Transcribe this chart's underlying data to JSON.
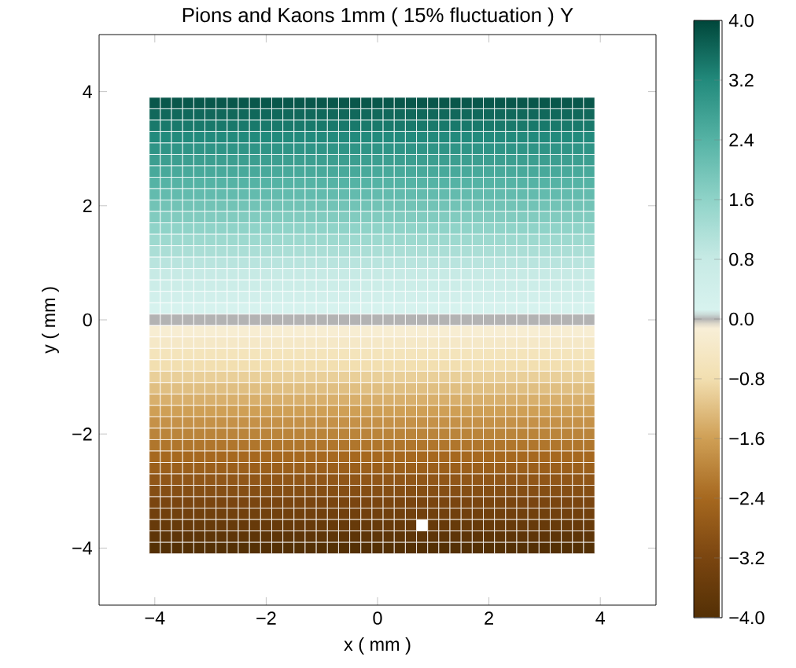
{
  "chart_data": {
    "type": "heatmap",
    "title": "Pions and Kaons 1mm ( 15% fluctuation ) Y",
    "xlabel": "x ( mm )",
    "ylabel": "y ( mm )",
    "x": [
      -4.0,
      -3.8,
      -3.6,
      -3.4,
      -3.2,
      -3.0,
      -2.8,
      -2.6,
      -2.4,
      -2.2,
      -2.0,
      -1.8,
      -1.6,
      -1.4,
      -1.2,
      -1.0,
      -0.8,
      -0.6,
      -0.4,
      -0.2,
      0.0,
      0.2,
      0.4,
      0.6,
      0.8,
      1.0,
      1.2,
      1.4,
      1.6,
      1.8,
      2.0,
      2.2,
      2.4,
      2.6,
      2.8,
      3.0,
      3.2,
      3.4,
      3.6,
      3.8
    ],
    "y": [
      3.8,
      3.6,
      3.4,
      3.2,
      3.0,
      2.8,
      2.6,
      2.4,
      2.2,
      2.0,
      1.8,
      1.6,
      1.4,
      1.2,
      1.0,
      0.8,
      0.6,
      0.4,
      0.2,
      0.0,
      -0.2,
      -0.4,
      -0.6,
      -0.8,
      -1.0,
      -1.2,
      -1.4,
      -1.6,
      -1.8,
      -2.0,
      -2.2,
      -2.4,
      -2.6,
      -2.8,
      -3.0,
      -3.2,
      -3.4,
      -3.6,
      -3.8,
      -4.0
    ],
    "cells": [
      [
        3.8,
        3.8,
        3.8,
        3.8,
        3.8,
        3.8,
        3.8,
        3.8,
        3.8,
        3.8,
        3.8,
        3.8,
        3.8,
        3.8,
        3.8,
        3.8,
        3.8,
        3.8,
        3.8,
        3.8,
        3.8,
        3.8,
        3.8,
        3.8,
        3.8,
        3.8,
        3.8,
        3.8,
        3.8,
        3.8,
        3.8,
        3.8,
        3.8,
        3.8,
        3.8,
        3.8,
        3.8,
        3.8,
        3.8,
        3.8
      ],
      [
        3.6,
        3.6,
        3.6,
        3.6,
        3.6,
        3.6,
        3.6,
        3.6,
        3.6,
        3.6,
        3.6,
        3.6,
        3.6,
        3.6,
        3.6,
        3.6,
        3.6,
        3.6,
        3.6,
        3.6,
        3.6,
        3.6,
        3.6,
        3.6,
        3.6,
        3.6,
        3.6,
        3.6,
        3.6,
        3.6,
        3.6,
        3.6,
        3.6,
        3.6,
        3.6,
        3.6,
        3.6,
        3.6,
        3.6,
        3.6
      ],
      [
        3.4,
        3.4,
        3.4,
        3.4,
        3.4,
        3.4,
        3.4,
        3.4,
        3.4,
        3.4,
        3.4,
        3.4,
        3.4,
        3.4,
        3.4,
        3.4,
        3.4,
        3.4,
        3.4,
        3.4,
        3.4,
        3.4,
        3.4,
        3.4,
        3.4,
        3.4,
        3.4,
        3.4,
        3.4,
        3.4,
        3.4,
        3.4,
        3.4,
        3.4,
        3.4,
        3.4,
        3.4,
        3.4,
        3.4,
        3.4
      ],
      [
        3.2,
        3.2,
        3.2,
        3.2,
        3.2,
        3.2,
        3.2,
        3.2,
        3.2,
        3.2,
        3.2,
        3.2,
        3.2,
        3.2,
        3.2,
        3.2,
        3.2,
        3.2,
        3.2,
        3.2,
        3.2,
        3.2,
        3.2,
        3.2,
        3.2,
        3.2,
        3.2,
        3.2,
        3.2,
        3.2,
        3.2,
        3.2,
        3.2,
        3.2,
        3.2,
        3.2,
        3.2,
        3.2,
        3.2,
        3.2
      ],
      [
        3.0,
        3.0,
        3.0,
        3.0,
        3.0,
        3.0,
        3.0,
        3.0,
        3.0,
        3.0,
        3.0,
        3.0,
        3.0,
        3.0,
        3.0,
        3.0,
        3.0,
        3.0,
        3.0,
        3.0,
        3.0,
        3.0,
        3.0,
        3.0,
        3.0,
        3.0,
        3.0,
        3.0,
        3.0,
        3.0,
        3.0,
        3.0,
        3.0,
        3.0,
        3.0,
        3.0,
        3.0,
        3.0,
        3.0,
        3.0
      ],
      [
        2.8,
        2.8,
        2.8,
        2.8,
        2.8,
        2.8,
        2.8,
        2.8,
        2.8,
        2.8,
        2.8,
        2.8,
        2.8,
        2.8,
        2.8,
        2.8,
        2.8,
        2.8,
        2.8,
        2.8,
        2.8,
        2.8,
        2.8,
        2.8,
        2.8,
        2.8,
        2.8,
        2.8,
        2.8,
        2.8,
        2.8,
        2.8,
        2.8,
        2.8,
        2.8,
        2.8,
        2.8,
        2.8,
        2.8,
        2.8
      ],
      [
        2.6,
        2.6,
        2.6,
        2.6,
        2.6,
        2.6,
        2.6,
        2.6,
        2.6,
        2.6,
        2.6,
        2.6,
        2.6,
        2.6,
        2.6,
        2.6,
        2.6,
        2.6,
        2.6,
        2.6,
        2.6,
        2.6,
        2.6,
        2.6,
        2.6,
        2.6,
        2.6,
        2.6,
        2.6,
        2.6,
        2.6,
        2.6,
        2.6,
        2.6,
        2.6,
        2.6,
        2.6,
        2.6,
        2.6,
        2.6
      ],
      [
        2.4,
        2.4,
        2.4,
        2.4,
        2.4,
        2.4,
        2.4,
        2.4,
        2.4,
        2.4,
        2.4,
        2.4,
        2.4,
        2.4,
        2.4,
        2.4,
        2.4,
        2.4,
        2.4,
        2.4,
        2.4,
        2.4,
        2.4,
        2.4,
        2.4,
        2.4,
        2.4,
        2.4,
        2.4,
        2.4,
        2.4,
        2.4,
        2.4,
        2.4,
        2.4,
        2.4,
        2.4,
        2.4,
        2.4,
        2.4
      ],
      [
        2.2,
        2.2,
        2.2,
        2.2,
        2.2,
        2.2,
        2.2,
        2.2,
        2.2,
        2.2,
        2.2,
        2.2,
        2.2,
        2.2,
        2.2,
        2.2,
        2.2,
        2.2,
        2.2,
        2.2,
        2.2,
        2.2,
        2.2,
        2.2,
        2.2,
        2.2,
        2.2,
        2.2,
        2.2,
        2.2,
        2.2,
        2.2,
        2.2,
        2.2,
        2.2,
        2.2,
        2.2,
        2.2,
        2.2,
        2.2
      ],
      [
        2.0,
        2.0,
        2.0,
        2.0,
        2.0,
        2.0,
        2.0,
        2.0,
        2.0,
        2.0,
        2.0,
        2.0,
        2.0,
        2.0,
        2.0,
        2.0,
        2.0,
        2.0,
        2.0,
        2.0,
        2.0,
        2.0,
        2.0,
        2.0,
        2.0,
        2.0,
        2.0,
        2.0,
        2.0,
        2.0,
        2.0,
        2.0,
        2.0,
        2.0,
        2.0,
        2.0,
        2.0,
        2.0,
        2.0,
        2.0
      ],
      [
        1.8,
        1.8,
        1.8,
        1.8,
        1.8,
        1.8,
        1.8,
        1.8,
        1.8,
        1.8,
        1.8,
        1.8,
        1.8,
        1.8,
        1.8,
        1.8,
        1.8,
        1.8,
        1.8,
        1.8,
        1.8,
        1.8,
        1.8,
        1.8,
        1.8,
        1.8,
        1.8,
        1.8,
        1.8,
        1.8,
        1.8,
        1.8,
        1.8,
        1.8,
        1.8,
        1.8,
        1.8,
        1.8,
        1.8,
        1.8
      ],
      [
        1.6,
        1.6,
        1.6,
        1.6,
        1.6,
        1.6,
        1.6,
        1.6,
        1.6,
        1.6,
        1.6,
        1.6,
        1.6,
        1.6,
        1.6,
        1.6,
        1.6,
        1.6,
        1.6,
        1.6,
        1.6,
        1.6,
        1.6,
        1.6,
        1.6,
        1.6,
        1.6,
        1.6,
        1.6,
        1.6,
        1.6,
        1.6,
        1.6,
        1.6,
        1.6,
        1.6,
        1.6,
        1.6,
        1.6,
        1.6
      ],
      [
        1.4,
        1.4,
        1.4,
        1.4,
        1.4,
        1.4,
        1.4,
        1.4,
        1.4,
        1.4,
        1.4,
        1.4,
        1.4,
        1.4,
        1.4,
        1.4,
        1.4,
        1.4,
        1.4,
        1.4,
        1.4,
        1.4,
        1.4,
        1.4,
        1.4,
        1.4,
        1.4,
        1.4,
        1.4,
        1.4,
        1.4,
        1.4,
        1.4,
        1.4,
        1.4,
        1.4,
        1.4,
        1.4,
        1.4,
        1.4
      ],
      [
        1.2,
        1.2,
        1.2,
        1.2,
        1.2,
        1.2,
        1.2,
        1.2,
        1.2,
        1.2,
        1.2,
        1.2,
        1.2,
        1.2,
        1.2,
        1.2,
        1.2,
        1.2,
        1.2,
        1.2,
        1.2,
        1.2,
        1.2,
        1.2,
        1.2,
        1.2,
        1.2,
        1.2,
        1.2,
        1.2,
        1.2,
        1.2,
        1.2,
        1.2,
        1.2,
        1.2,
        1.2,
        1.2,
        1.2,
        1.2
      ],
      [
        1.0,
        1.0,
        1.0,
        1.0,
        1.0,
        1.0,
        1.0,
        1.0,
        1.0,
        1.0,
        1.0,
        1.0,
        1.0,
        1.0,
        1.0,
        1.0,
        1.0,
        1.0,
        1.0,
        1.0,
        1.0,
        1.0,
        1.0,
        1.0,
        1.0,
        1.0,
        1.0,
        1.0,
        1.0,
        1.0,
        1.0,
        1.0,
        1.0,
        1.0,
        1.0,
        1.0,
        1.0,
        1.0,
        1.0,
        1.0
      ],
      [
        0.8,
        0.8,
        0.8,
        0.8,
        0.8,
        0.8,
        0.8,
        0.8,
        0.8,
        0.8,
        0.8,
        0.8,
        0.8,
        0.8,
        0.8,
        0.8,
        0.8,
        0.8,
        0.8,
        0.8,
        0.8,
        0.8,
        0.8,
        0.8,
        0.8,
        0.8,
        0.8,
        0.8,
        0.8,
        0.8,
        0.8,
        0.8,
        0.8,
        0.8,
        0.8,
        0.8,
        0.8,
        0.8,
        0.8,
        0.8
      ],
      [
        0.6,
        0.6,
        0.6,
        0.6,
        0.6,
        0.6,
        0.6,
        0.6,
        0.6,
        0.6,
        0.6,
        0.6,
        0.6,
        0.6,
        0.6,
        0.6,
        0.6,
        0.6,
        0.6,
        0.6,
        0.6,
        0.6,
        0.6,
        0.6,
        0.6,
        0.6,
        0.6,
        0.6,
        0.6,
        0.6,
        0.6,
        0.6,
        0.6,
        0.6,
        0.6,
        0.6,
        0.6,
        0.6,
        0.6,
        0.6
      ],
      [
        0.4,
        0.4,
        0.4,
        0.4,
        0.4,
        0.4,
        0.4,
        0.4,
        0.4,
        0.4,
        0.4,
        0.4,
        0.4,
        0.4,
        0.4,
        0.4,
        0.4,
        0.4,
        0.4,
        0.4,
        0.4,
        0.4,
        0.4,
        0.4,
        0.4,
        0.4,
        0.4,
        0.4,
        0.4,
        0.4,
        0.4,
        0.4,
        0.4,
        0.4,
        0.4,
        0.4,
        0.4,
        0.4,
        0.4,
        0.4
      ],
      [
        0.2,
        0.2,
        0.2,
        0.2,
        0.2,
        0.2,
        0.2,
        0.2,
        0.2,
        0.2,
        0.2,
        0.2,
        0.2,
        0.2,
        0.2,
        0.2,
        0.2,
        0.2,
        0.2,
        0.2,
        0.2,
        0.2,
        0.2,
        0.2,
        0.2,
        0.2,
        0.2,
        0.2,
        0.2,
        0.2,
        0.2,
        0.2,
        0.2,
        0.2,
        0.2,
        0.2,
        0.2,
        0.2,
        0.2,
        0.2
      ],
      [
        0.0,
        0.0,
        0.0,
        0.0,
        0.0,
        0.0,
        0.0,
        0.0,
        0.0,
        0.0,
        0.0,
        0.0,
        0.0,
        0.0,
        0.0,
        0.0,
        0.0,
        0.0,
        0.0,
        0.0,
        0.0,
        0.0,
        0.0,
        0.0,
        0.0,
        0.0,
        0.0,
        0.0,
        0.0,
        0.0,
        0.0,
        0.0,
        0.0,
        0.0,
        0.0,
        0.0,
        0.0,
        0.0,
        0.0,
        0.0
      ],
      [
        -0.2,
        -0.2,
        -0.2,
        -0.2,
        -0.2,
        -0.2,
        -0.2,
        -0.2,
        -0.2,
        -0.2,
        -0.2,
        -0.2,
        -0.2,
        -0.2,
        -0.2,
        -0.2,
        -0.2,
        -0.2,
        -0.2,
        -0.2,
        -0.2,
        -0.2,
        -0.2,
        -0.2,
        -0.2,
        -0.2,
        -0.2,
        -0.2,
        -0.2,
        -0.2,
        -0.2,
        -0.2,
        -0.2,
        -0.2,
        -0.2,
        -0.2,
        -0.2,
        -0.2,
        -0.2,
        -0.2
      ],
      [
        -0.4,
        -0.4,
        -0.4,
        -0.4,
        -0.4,
        -0.4,
        -0.4,
        -0.4,
        -0.4,
        -0.4,
        -0.4,
        -0.4,
        -0.4,
        -0.4,
        -0.4,
        -0.4,
        -0.4,
        -0.4,
        -0.4,
        -0.4,
        -0.4,
        -0.4,
        -0.4,
        -0.4,
        -0.4,
        -0.4,
        -0.4,
        -0.4,
        -0.4,
        -0.4,
        -0.4,
        -0.4,
        -0.4,
        -0.4,
        -0.4,
        -0.4,
        -0.4,
        -0.4,
        -0.4,
        -0.4
      ],
      [
        -0.6,
        -0.6,
        -0.6,
        -0.6,
        -0.6,
        -0.6,
        -0.6,
        -0.6,
        -0.6,
        -0.6,
        -0.6,
        -0.6,
        -0.6,
        -0.6,
        -0.6,
        -0.6,
        -0.6,
        -0.6,
        -0.6,
        -0.6,
        -0.6,
        -0.6,
        -0.6,
        -0.6,
        -0.6,
        -0.6,
        -0.6,
        -0.6,
        -0.6,
        -0.6,
        -0.6,
        -0.6,
        -0.6,
        -0.6,
        -0.6,
        -0.6,
        -0.6,
        -0.6,
        -0.6,
        -0.6
      ],
      [
        -0.8,
        -0.8,
        -0.8,
        -0.8,
        -0.8,
        -0.8,
        -0.8,
        -0.8,
        -0.8,
        -0.8,
        -0.8,
        -0.8,
        -0.8,
        -0.8,
        -0.8,
        -0.8,
        -0.8,
        -0.8,
        -0.8,
        -0.8,
        -0.8,
        -0.8,
        -0.8,
        -0.8,
        -0.8,
        -0.8,
        -0.8,
        -0.8,
        -0.8,
        -0.8,
        -0.8,
        -0.8,
        -0.8,
        -0.8,
        -0.8,
        -0.8,
        -0.8,
        -0.8,
        -0.8,
        -0.8
      ],
      [
        -1.0,
        -1.0,
        -1.0,
        -1.0,
        -1.0,
        -1.0,
        -1.0,
        -1.0,
        -1.0,
        -1.0,
        -1.0,
        -1.0,
        -1.0,
        -1.0,
        -1.0,
        -1.0,
        -1.0,
        -1.0,
        -1.0,
        -1.0,
        -1.0,
        -1.0,
        -1.0,
        -1.0,
        -1.0,
        -1.0,
        -1.0,
        -1.0,
        -1.0,
        -1.0,
        -1.0,
        -1.0,
        -1.0,
        -1.0,
        -1.0,
        -1.0,
        -1.0,
        -1.0,
        -1.0,
        -1.0
      ],
      [
        -1.2,
        -1.2,
        -1.2,
        -1.2,
        -1.2,
        -1.2,
        -1.2,
        -1.2,
        -1.2,
        -1.2,
        -1.2,
        -1.2,
        -1.2,
        -1.2,
        -1.2,
        -1.2,
        -1.2,
        -1.2,
        -1.2,
        -1.2,
        -1.2,
        -1.2,
        -1.2,
        -1.2,
        -1.2,
        -1.2,
        -1.2,
        -1.2,
        -1.2,
        -1.2,
        -1.2,
        -1.2,
        -1.2,
        -1.2,
        -1.2,
        -1.2,
        -1.2,
        -1.2,
        -1.2,
        -1.2
      ],
      [
        -1.4,
        -1.4,
        -1.4,
        -1.4,
        -1.4,
        -1.4,
        -1.4,
        -1.4,
        -1.4,
        -1.4,
        -1.4,
        -1.4,
        -1.4,
        -1.4,
        -1.4,
        -1.4,
        -1.4,
        -1.4,
        -1.4,
        -1.4,
        -1.4,
        -1.4,
        -1.4,
        -1.4,
        -1.4,
        -1.4,
        -1.4,
        -1.4,
        -1.4,
        -1.4,
        -1.4,
        -1.4,
        -1.4,
        -1.4,
        -1.4,
        -1.4,
        -1.4,
        -1.4,
        -1.4,
        -1.4
      ],
      [
        -1.6,
        -1.6,
        -1.6,
        -1.6,
        -1.6,
        -1.6,
        -1.6,
        -1.6,
        -1.6,
        -1.6,
        -1.6,
        -1.6,
        -1.6,
        -1.6,
        -1.6,
        -1.6,
        -1.6,
        -1.6,
        -1.6,
        -1.6,
        -1.6,
        -1.6,
        -1.6,
        -1.6,
        -1.6,
        -1.6,
        -1.6,
        -1.6,
        -1.6,
        -1.6,
        -1.6,
        -1.6,
        -1.6,
        -1.6,
        -1.6,
        -1.6,
        -1.6,
        -1.6,
        -1.6,
        -1.6
      ],
      [
        -1.8,
        -1.8,
        -1.8,
        -1.8,
        -1.8,
        -1.8,
        -1.8,
        -1.8,
        -1.8,
        -1.8,
        -1.8,
        -1.8,
        -1.8,
        -1.8,
        -1.8,
        -1.8,
        -1.8,
        -1.8,
        -1.8,
        -1.8,
        -1.8,
        -1.8,
        -1.8,
        -1.8,
        -1.8,
        -1.8,
        -1.8,
        -1.8,
        -1.8,
        -1.8,
        -1.8,
        -1.8,
        -1.8,
        -1.8,
        -1.8,
        -1.8,
        -1.8,
        -1.8,
        -1.8,
        -1.8
      ],
      [
        -2.0,
        -2.0,
        -2.0,
        -2.0,
        -2.0,
        -2.0,
        -2.0,
        -2.0,
        -2.0,
        -2.0,
        -2.0,
        -2.0,
        -2.0,
        -2.0,
        -2.0,
        -2.0,
        -2.0,
        -2.0,
        -2.0,
        -2.0,
        -2.0,
        -2.0,
        -2.0,
        -2.0,
        -2.0,
        -2.0,
        -2.0,
        -2.0,
        -2.0,
        -2.0,
        -2.0,
        -2.0,
        -2.0,
        -2.0,
        -2.0,
        -2.0,
        -2.0,
        -2.0,
        -2.0,
        -2.0
      ],
      [
        -2.2,
        -2.2,
        -2.2,
        -2.2,
        -2.2,
        -2.2,
        -2.2,
        -2.2,
        -2.2,
        -2.2,
        -2.2,
        -2.2,
        -2.2,
        -2.2,
        -2.2,
        -2.2,
        -2.2,
        -2.2,
        -2.2,
        -2.2,
        -2.2,
        -2.2,
        -2.2,
        -2.2,
        -2.2,
        -2.2,
        -2.2,
        -2.2,
        -2.2,
        -2.2,
        -2.2,
        -2.2,
        -2.2,
        -2.2,
        -2.2,
        -2.2,
        -2.2,
        -2.2,
        -2.2,
        -2.2
      ],
      [
        -2.4,
        -2.4,
        -2.4,
        -2.4,
        -2.4,
        -2.4,
        -2.4,
        -2.4,
        -2.4,
        -2.4,
        -2.4,
        -2.4,
        -2.4,
        -2.4,
        -2.4,
        -2.4,
        -2.4,
        -2.4,
        -2.4,
        -2.4,
        -2.4,
        -2.4,
        -2.4,
        -2.4,
        -2.4,
        -2.4,
        -2.4,
        -2.4,
        -2.4,
        -2.4,
        -2.4,
        -2.4,
        -2.4,
        -2.4,
        -2.4,
        -2.4,
        -2.4,
        -2.4,
        -2.4,
        -2.4
      ],
      [
        -2.6,
        -2.6,
        -2.6,
        -2.6,
        -2.6,
        -2.6,
        -2.6,
        -2.6,
        -2.6,
        -2.6,
        -2.6,
        -2.6,
        -2.6,
        -2.6,
        -2.6,
        -2.6,
        -2.6,
        -2.6,
        -2.6,
        -2.6,
        -2.6,
        -2.6,
        -2.6,
        -2.6,
        -2.6,
        -2.6,
        -2.6,
        -2.6,
        -2.6,
        -2.6,
        -2.6,
        -2.6,
        -2.6,
        -2.6,
        -2.6,
        -2.6,
        -2.6,
        -2.6,
        -2.6,
        -2.6
      ],
      [
        -2.8,
        -2.8,
        -2.8,
        -2.8,
        -2.8,
        -2.8,
        -2.8,
        -2.8,
        -2.8,
        -2.8,
        -2.8,
        -2.8,
        -2.8,
        -2.8,
        -2.8,
        -2.8,
        -2.8,
        -2.8,
        -2.8,
        -2.8,
        -2.8,
        -2.8,
        -2.8,
        -2.8,
        -2.8,
        -2.8,
        -2.8,
        -2.8,
        -2.8,
        -2.8,
        -2.8,
        -2.8,
        -2.8,
        -2.8,
        -2.8,
        -2.8,
        -2.8,
        -2.8,
        -2.8,
        -2.8
      ],
      [
        -3.0,
        -3.0,
        -3.0,
        -3.0,
        -3.0,
        -3.0,
        -3.0,
        -3.0,
        -3.0,
        -3.0,
        -3.0,
        -3.0,
        -3.0,
        -3.0,
        -3.0,
        -3.0,
        -3.0,
        -3.0,
        -3.0,
        -3.0,
        -3.0,
        -3.0,
        -3.0,
        -3.0,
        -3.0,
        -3.0,
        -3.0,
        -3.0,
        -3.0,
        -3.0,
        -3.0,
        -3.0,
        -3.0,
        -3.0,
        -3.0,
        -3.0,
        -3.0,
        -3.0,
        -3.0,
        -3.0
      ],
      [
        -3.2,
        -3.2,
        -3.2,
        -3.2,
        -3.2,
        -3.2,
        -3.2,
        -3.2,
        -3.2,
        -3.2,
        -3.2,
        -3.2,
        -3.2,
        -3.2,
        -3.2,
        -3.2,
        -3.2,
        -3.2,
        -3.2,
        -3.2,
        -3.2,
        -3.2,
        -3.2,
        -3.2,
        -3.2,
        -3.2,
        -3.2,
        -3.2,
        -3.2,
        -3.2,
        -3.2,
        -3.2,
        -3.2,
        -3.2,
        -3.2,
        -3.2,
        -3.2,
        -3.2,
        -3.2,
        -3.2
      ],
      [
        -3.4,
        -3.4,
        -3.4,
        -3.4,
        -3.4,
        -3.4,
        -3.4,
        -3.4,
        -3.4,
        -3.4,
        -3.4,
        -3.4,
        -3.4,
        -3.4,
        -3.4,
        -3.4,
        -3.4,
        -3.4,
        -3.4,
        -3.4,
        -3.4,
        -3.4,
        -3.4,
        -3.4,
        -3.4,
        -3.4,
        -3.4,
        -3.4,
        -3.4,
        -3.4,
        -3.4,
        -3.4,
        -3.4,
        -3.4,
        -3.4,
        -3.4,
        -3.4,
        -3.4,
        -3.4,
        -3.4
      ],
      [
        -3.6,
        -3.6,
        -3.6,
        -3.6,
        -3.6,
        -3.6,
        -3.6,
        -3.6,
        -3.6,
        -3.6,
        -3.6,
        -3.6,
        -3.6,
        -3.6,
        -3.6,
        -3.6,
        -3.6,
        -3.6,
        -3.6,
        -3.6,
        -3.6,
        -3.6,
        -3.6,
        -3.6,
        null,
        -3.6,
        -3.6,
        -3.6,
        -3.6,
        -3.6,
        -3.6,
        -3.6,
        -3.6,
        -3.6,
        -3.6,
        -3.6,
        -3.6,
        -3.6,
        -3.6,
        -3.6
      ],
      [
        -3.8,
        -3.8,
        -3.8,
        -3.8,
        -3.8,
        -3.8,
        -3.8,
        -3.8,
        -3.8,
        -3.8,
        -3.8,
        -3.8,
        -3.8,
        -3.8,
        -3.8,
        -3.8,
        -3.8,
        -3.8,
        -3.8,
        -3.8,
        -3.8,
        -3.8,
        -3.8,
        -3.8,
        -3.8,
        -3.8,
        -3.8,
        -3.8,
        -3.8,
        -3.8,
        -3.8,
        -3.8,
        -3.8,
        -3.8,
        -3.8,
        -3.8,
        -3.8,
        -3.8,
        -3.8,
        -3.8
      ],
      [
        -4.0,
        -4.0,
        -4.0,
        -4.0,
        -4.0,
        -4.0,
        -4.0,
        -4.0,
        -4.0,
        -4.0,
        -4.0,
        -4.0,
        -4.0,
        -4.0,
        -4.0,
        -4.0,
        -4.0,
        -4.0,
        -4.0,
        -4.0,
        -4.0,
        -4.0,
        -4.0,
        -4.0,
        -4.0,
        -4.0,
        -4.0,
        -4.0,
        -4.0,
        -4.0,
        -4.0,
        -4.0,
        -4.0,
        -4.0,
        -4.0,
        -4.0,
        -4.0,
        -4.0,
        -4.0,
        -4.0
      ]
    ],
    "xlim": [
      -5,
      5
    ],
    "ylim": [
      -5,
      5
    ],
    "xticks": [
      {
        "value": -4,
        "label": "−4"
      },
      {
        "value": -2,
        "label": "−2"
      },
      0,
      2,
      4
    ],
    "yticks": [
      {
        "value": -4,
        "label": "−4"
      },
      {
        "value": -2,
        "label": "−2"
      },
      0,
      2,
      4
    ],
    "clim": [
      -4,
      4
    ],
    "cticks": [
      {
        "value": -4,
        "label": "−4.0"
      },
      {
        "value": -3.2,
        "label": "−3.2"
      },
      {
        "value": -2.4,
        "label": "−2.4"
      },
      {
        "value": -1.6,
        "label": "−1.6"
      },
      {
        "value": -0.8,
        "label": "−0.8"
      },
      {
        "value": 0,
        "label": "0.0"
      },
      {
        "value": 0.8,
        "label": "0.8"
      },
      {
        "value": 1.6,
        "label": "1.6"
      },
      {
        "value": 2.4,
        "label": "2.4"
      },
      {
        "value": 3.2,
        "label": "3.2"
      },
      {
        "value": 4,
        "label": "4.0"
      }
    ],
    "grid": false
  }
}
